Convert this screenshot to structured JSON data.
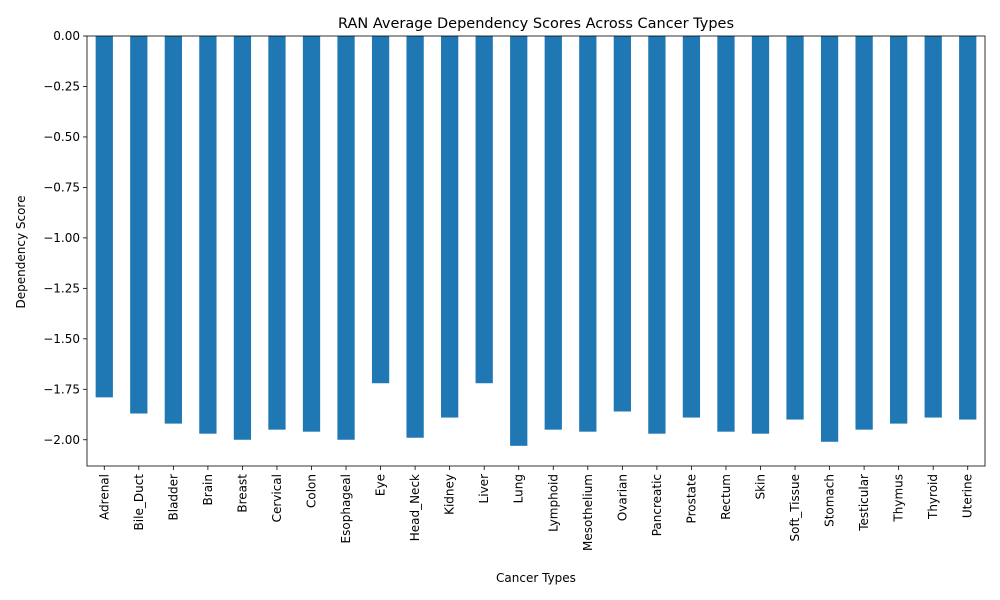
{
  "chart_data": {
    "type": "bar",
    "title": "RAN Average Dependency Scores Across Cancer Types",
    "xlabel": "Cancer Types",
    "ylabel": "Dependency Score",
    "categories": [
      "Adrenal",
      "Bile_Duct",
      "Bladder",
      "Brain",
      "Breast",
      "Cervical",
      "Colon",
      "Esophageal",
      "Eye",
      "Head_Neck",
      "Kidney",
      "Liver",
      "Lung",
      "Lymphoid",
      "Mesothelium",
      "Ovarian",
      "Pancreatic",
      "Prostate",
      "Rectum",
      "Skin",
      "Soft_Tissue",
      "Stomach",
      "Testicular",
      "Thymus",
      "Thyroid",
      "Uterine"
    ],
    "values": [
      -1.79,
      -1.87,
      -1.92,
      -1.97,
      -2.0,
      -1.95,
      -1.96,
      -2.0,
      -1.72,
      -1.99,
      -1.89,
      -1.72,
      -2.03,
      -1.95,
      -1.96,
      -1.86,
      -1.97,
      -1.89,
      -1.96,
      -1.97,
      -1.9,
      -2.01,
      -1.95,
      -1.92,
      -1.89,
      -1.9
    ],
    "ylim": [
      -2.13,
      0.0
    ],
    "yticks": [
      0.0,
      -0.25,
      -0.5,
      -0.75,
      -1.0,
      -1.25,
      -1.5,
      -1.75,
      -2.0
    ],
    "ytick_labels": [
      "0.00",
      "−0.25",
      "−0.50",
      "−0.75",
      "−1.00",
      "−1.25",
      "−1.50",
      "−1.75",
      "−2.00"
    ],
    "bar_color": "#1f77b4",
    "grid": false,
    "legend": false
  }
}
